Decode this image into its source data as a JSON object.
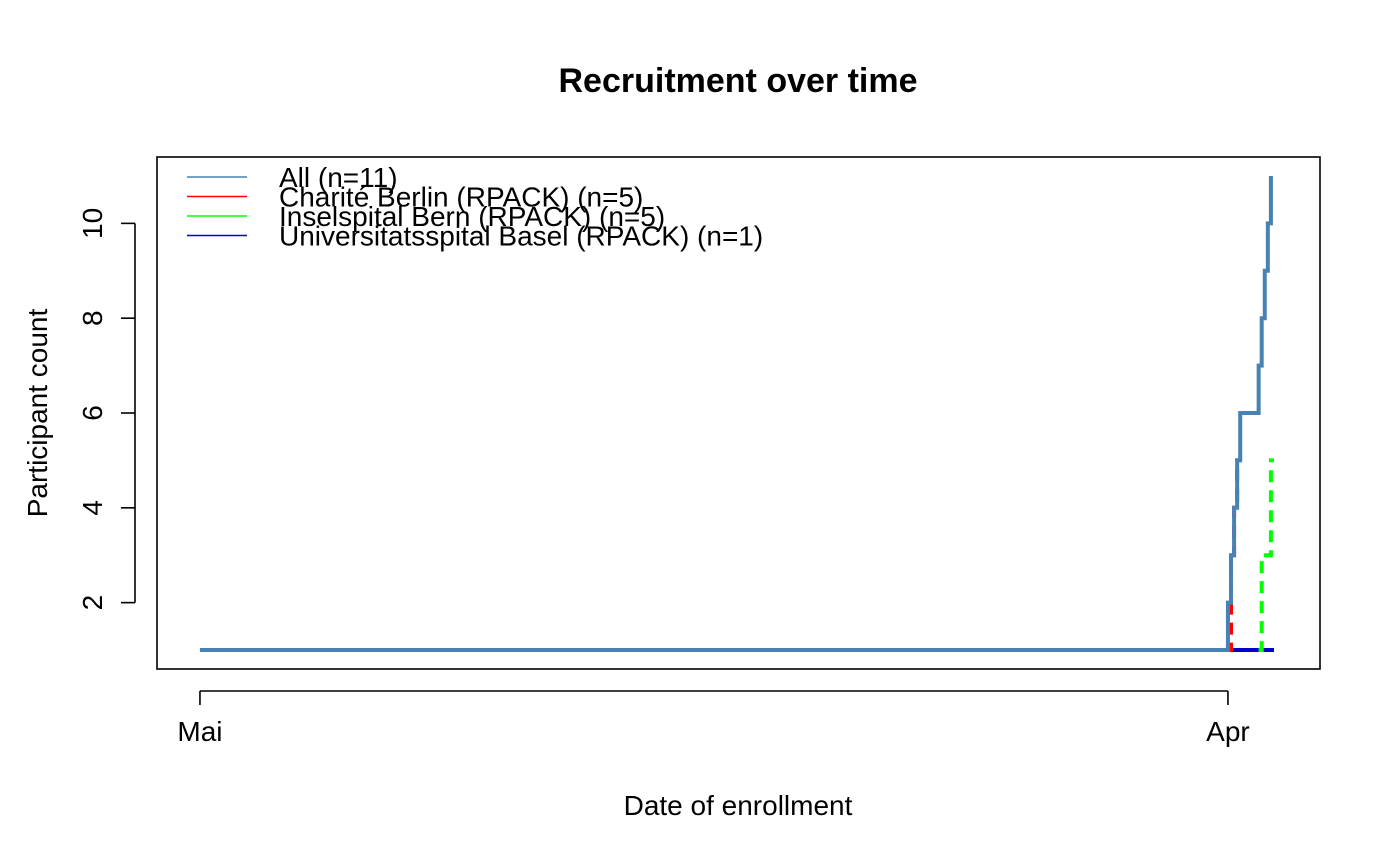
{
  "chart_data": {
    "type": "line",
    "title": "Recruitment over time",
    "xlabel": "Date of enrollment",
    "ylabel": "Participant count",
    "x_ticks": [
      {
        "label": "Mai",
        "value": 0
      },
      {
        "label": "Apr",
        "value": 335
      }
    ],
    "y_ticks": [
      2,
      4,
      6,
      8,
      10
    ],
    "xlim": [
      -14,
      365
    ],
    "ylim": [
      0.6,
      11.4
    ],
    "grid": false,
    "legend": {
      "position": "top-left",
      "entries": [
        {
          "label": "All (n=11)",
          "color": "#4682B4"
        },
        {
          "label": "Charité Berlin (RPACK) (n=5)",
          "color": "#FF0000"
        },
        {
          "label": "Inselspital Bern (RPACK) (n=5)",
          "color": "#00FF00"
        },
        {
          "label": "Universitatsspital Basel (RPACK) (n=1)",
          "color": "#0000CD"
        }
      ]
    },
    "series": [
      {
        "name": "Universitatsspital Basel (RPACK) (n=1)",
        "color": "#0000CD",
        "dash": "solid",
        "x": [
          0,
          350
        ],
        "y": [
          1,
          1
        ]
      },
      {
        "name": "Inselspital Bern (RPACK) (n=5)",
        "color": "#00FF00",
        "dash": "dashed",
        "x": [
          345,
          346,
          347,
          348,
          349,
          350
        ],
        "y": [
          1,
          3,
          3,
          3,
          5,
          5
        ]
      },
      {
        "name": "Charité Berlin (RPACK) (n=5)",
        "color": "#FF0000",
        "dash": "dashed",
        "x": [
          334.5,
          335,
          336,
          337,
          338,
          338.5
        ],
        "y": [
          1,
          1,
          3,
          4,
          5,
          5
        ]
      },
      {
        "name": "All (n=11)",
        "color": "#4682B4",
        "dash": "solid",
        "x": [
          0,
          334,
          335,
          336,
          337,
          338,
          339,
          344,
          345,
          346,
          347,
          348,
          349
        ],
        "y": [
          1,
          1,
          2,
          3,
          4,
          5,
          6,
          6,
          7,
          8,
          9,
          10,
          11
        ]
      }
    ]
  }
}
